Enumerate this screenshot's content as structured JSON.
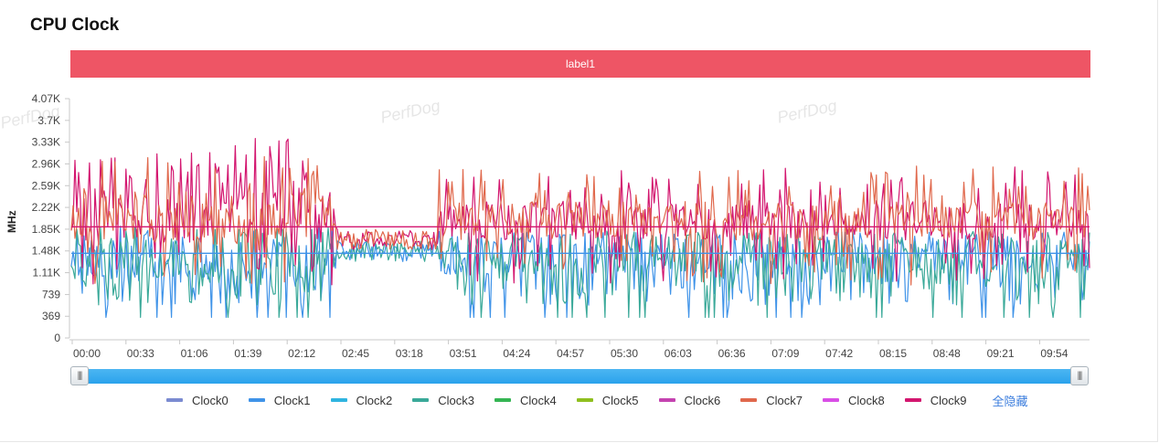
{
  "title": "CPU Clock",
  "band_label": "label1",
  "watermark": "PerfDog",
  "slider": {
    "start_fraction": 0,
    "end_fraction": 1
  },
  "legend_toggle": "全隐藏",
  "chart_data": {
    "type": "line",
    "ylabel": "MHz",
    "ylim": [
      0,
      4070
    ],
    "yticks": [
      "0",
      "369",
      "739",
      "1.11K",
      "1.48K",
      "1.85K",
      "2.22K",
      "2.59K",
      "2.96K",
      "3.33K",
      "3.7K",
      "4.07K"
    ],
    "ytick_values": [
      0,
      369,
      739,
      1110,
      1480,
      1850,
      2220,
      2590,
      2960,
      3330,
      3700,
      4070
    ],
    "xticks": [
      "00:00",
      "00:33",
      "01:06",
      "01:39",
      "02:12",
      "02:45",
      "03:18",
      "03:51",
      "04:24",
      "04:57",
      "05:30",
      "06:03",
      "06:36",
      "07:09",
      "07:42",
      "08:15",
      "08:48",
      "09:21",
      "09:54"
    ],
    "grid": false,
    "legend_position": "bottom",
    "x_range_seconds": [
      0,
      628
    ],
    "series": [
      {
        "name": "Clock0",
        "color": "#7b8bd1",
        "seed": 11,
        "kind": "low",
        "values": []
      },
      {
        "name": "Clock1",
        "color": "#3f93e8",
        "seed": 23,
        "kind": "low",
        "avg": 1440
      },
      {
        "name": "Clock2",
        "color": "#2fb4e0",
        "seed": 37,
        "kind": "low",
        "avg": 1440
      },
      {
        "name": "Clock3",
        "color": "#3aa999",
        "seed": 41,
        "kind": "low",
        "avg": 1440
      },
      {
        "name": "Clock4",
        "color": "#35b553",
        "seed": 53,
        "kind": "low"
      },
      {
        "name": "Clock5",
        "color": "#8fbf1f",
        "seed": 61,
        "kind": "low"
      },
      {
        "name": "Clock6",
        "color": "#c443b0",
        "seed": 71,
        "kind": "high"
      },
      {
        "name": "Clock7",
        "color": "#e0684c",
        "seed": 83,
        "kind": "high"
      },
      {
        "name": "Clock8",
        "color": "#d94ee6",
        "seed": 97,
        "kind": "high"
      },
      {
        "name": "Clock9",
        "color": "#d3166f",
        "seed": 101,
        "kind": "high",
        "avg": 1890
      }
    ]
  }
}
